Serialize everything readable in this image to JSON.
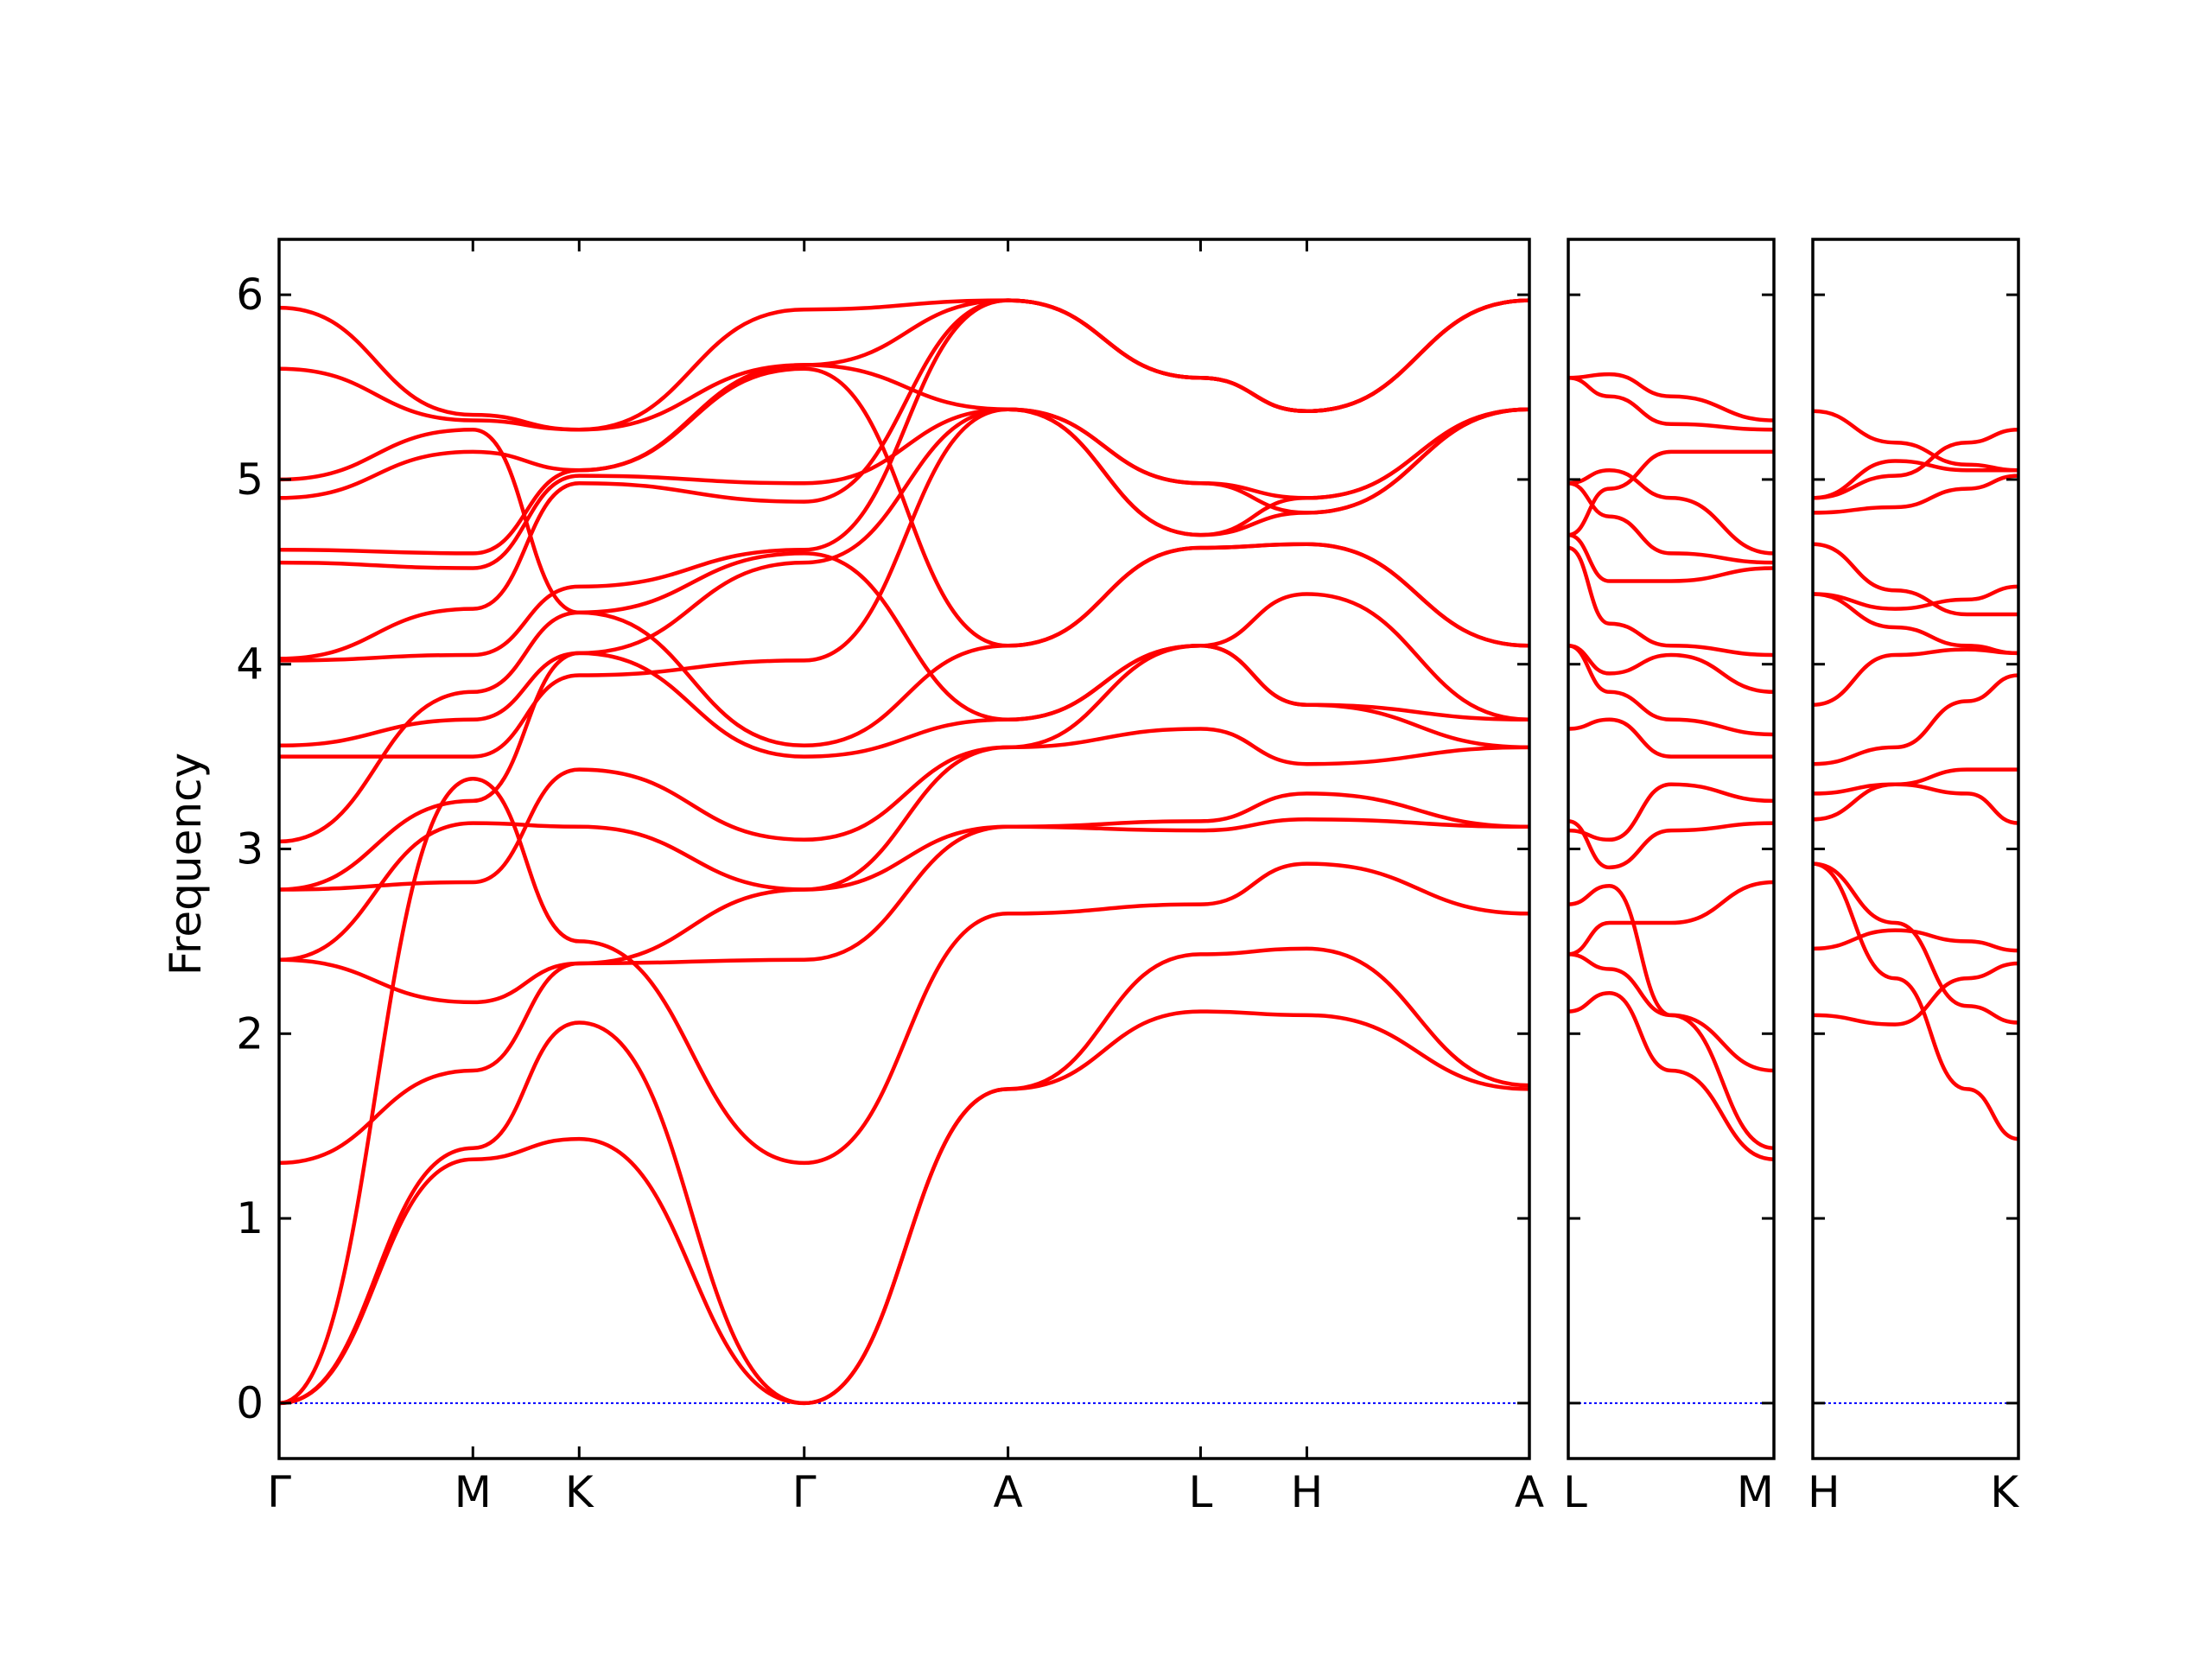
{
  "chart_data": {
    "type": "line",
    "ylabel": "Frequency",
    "ylim": [
      -0.3,
      6.3
    ],
    "yticks": [
      0,
      1,
      2,
      3,
      4,
      5,
      6
    ],
    "colors": {
      "bands": "#ff0000",
      "zero_line": "#0000ff"
    },
    "panels": [
      {
        "xlabels": [
          "Γ",
          "M",
          "K",
          "Γ",
          "A",
          "L",
          "H",
          "A"
        ],
        "xpos": [
          0,
          0.155,
          0.24,
          0.42,
          0.583,
          0.737,
          0.822,
          1.0
        ],
        "bands": [
          {
            "x": [
              0,
              0.155,
              0.24,
              0.42,
              0.583,
              0.737,
              0.822,
              1.0
            ],
            "y": [
              0,
              1.32,
              1.43,
              0,
              1.7,
              2.12,
              2.1,
              1.7
            ]
          },
          {
            "x": [
              0,
              0.155,
              0.24,
              0.42,
              0.583,
              0.737,
              0.822,
              1.0
            ],
            "y": [
              0,
              1.38,
              2.06,
              0,
              1.7,
              2.43,
              2.46,
              1.72
            ]
          },
          {
            "x": [
              0,
              0.155,
              0.24,
              0.42,
              0.583,
              0.737,
              0.822,
              1.0
            ],
            "y": [
              0,
              3.38,
              2.5,
              1.3,
              2.65,
              2.7,
              2.92,
              2.65
            ]
          },
          {
            "x": [
              0,
              0.155,
              0.24,
              0.42,
              0.583,
              0.737,
              0.822,
              1.0
            ],
            "y": [
              1.3,
              1.8,
              2.38,
              2.4,
              3.12,
              3.15,
              3.3,
              3.12
            ]
          },
          {
            "x": [
              0,
              0.155,
              0.24,
              0.42,
              0.583,
              0.737,
              0.822,
              1.0
            ],
            "y": [
              2.4,
              2.17,
              2.38,
              2.78,
              3.12,
              3.1,
              3.16,
              3.12
            ]
          },
          {
            "x": [
              0,
              0.155,
              0.24,
              0.42,
              0.583,
              0.737,
              0.822,
              1.0
            ],
            "y": [
              2.4,
              3.14,
              3.12,
              2.78,
              3.55,
              3.65,
              3.46,
              3.55
            ]
          },
          {
            "x": [
              0,
              0.155,
              0.24,
              0.42,
              0.583,
              0.737,
              0.822,
              1.0
            ],
            "y": [
              2.78,
              2.82,
              3.43,
              3.05,
              3.55,
              4.1,
              3.78,
              3.55
            ]
          },
          {
            "x": [
              0,
              0.155,
              0.24,
              0.42,
              0.583,
              0.737,
              0.822,
              1.0
            ],
            "y": [
              2.78,
              3.26,
              4.06,
              3.5,
              3.7,
              4.1,
              4.38,
              3.7
            ]
          },
          {
            "x": [
              0,
              0.155,
              0.24,
              0.42,
              0.583,
              0.737,
              0.822,
              1.0
            ],
            "y": [
              3.04,
              3.85,
              4.28,
              3.56,
              4.1,
              4.63,
              4.65,
              4.1
            ]
          },
          {
            "x": [
              0,
              0.155,
              0.24,
              0.42,
              0.583,
              0.737,
              0.822,
              1.0
            ],
            "y": [
              3.5,
              3.5,
              3.94,
              4.02,
              5.38,
              4.7,
              4.9,
              5.38
            ]
          },
          {
            "x": [
              0,
              0.155,
              0.24,
              0.42,
              0.583,
              0.737,
              0.822,
              1.0
            ],
            "y": [
              3.56,
              3.7,
              4.06,
              4.55,
              5.38,
              4.98,
              4.82,
              5.38
            ]
          },
          {
            "x": [
              0,
              0.155,
              0.24,
              0.42,
              0.583,
              0.737,
              0.822,
              1.0
            ],
            "y": [
              4.02,
              4.05,
              4.42,
              4.62,
              5.97,
              5.55,
              5.37,
              5.97
            ]
          },
          {
            "x": [
              0,
              0.155,
              0.24,
              0.42,
              0.583,
              0.737,
              0.822,
              1.0
            ],
            "y": [
              4.03,
              4.3,
              4.98,
              4.88,
              5.97,
              5.55,
              5.37,
              5.97
            ]
          },
          {
            "x": [
              0,
              0.155,
              0.24,
              0.42,
              0.583,
              0.737,
              0.822,
              1.0
            ],
            "y": [
              4.55,
              4.52,
              5.02,
              4.98,
              5.38,
              4.98,
              4.9,
              5.38
            ]
          },
          {
            "x": [
              0,
              0.155,
              0.24,
              0.42,
              0.583,
              0.737,
              0.822,
              1.0
            ],
            "y": [
              4.62,
              4.6,
              5.05,
              5.62,
              5.38,
              4.7,
              4.82,
              5.38
            ]
          },
          {
            "x": [
              0,
              0.155,
              0.24,
              0.42,
              0.583,
              0.737,
              0.822,
              1.0
            ],
            "y": [
              4.9,
              5.15,
              5.05,
              5.6,
              4.1,
              4.63,
              4.65,
              4.1
            ]
          },
          {
            "x": [
              0,
              0.155,
              0.24,
              0.42,
              0.583,
              0.737,
              0.822,
              1.0
            ],
            "y": [
              5.0,
              5.27,
              4.28,
              4.6,
              3.7,
              4.1,
              3.78,
              3.7
            ]
          },
          {
            "x": [
              0,
              0.155,
              0.24,
              0.42,
              0.583,
              0.737,
              0.822,
              1.0
            ],
            "y": [
              5.6,
              5.32,
              5.27,
              5.62,
              5.97,
              5.55,
              5.37,
              5.97
            ]
          },
          {
            "x": [
              0,
              0.155,
              0.24,
              0.42,
              0.583,
              0.737,
              0.822,
              1.0
            ],
            "y": [
              5.93,
              5.35,
              5.27,
              5.92,
              5.97,
              5.55,
              5.37,
              5.97
            ]
          }
        ]
      },
      {
        "xlabels": [
          "L",
          "M"
        ],
        "xpos": [
          0,
          1.0
        ],
        "bands": [
          {
            "x": [
              0,
              0.2,
              0.5,
              1.0
            ],
            "y": [
              2.12,
              2.22,
              1.8,
              1.32
            ]
          },
          {
            "x": [
              0,
              0.2,
              0.5,
              1.0
            ],
            "y": [
              2.43,
              2.35,
              2.1,
              1.38
            ]
          },
          {
            "x": [
              0,
              0.2,
              0.5,
              1.0
            ],
            "y": [
              2.7,
              2.8,
              2.1,
              1.8
            ]
          },
          {
            "x": [
              0,
              0.2,
              0.5,
              1.0
            ],
            "y": [
              2.43,
              2.6,
              2.6,
              2.82
            ]
          },
          {
            "x": [
              0,
              0.2,
              0.5,
              1.0
            ],
            "y": [
              3.15,
              2.9,
              3.1,
              3.14
            ]
          },
          {
            "x": [
              0,
              0.2,
              0.5,
              1.0
            ],
            "y": [
              3.1,
              3.05,
              3.35,
              3.26
            ]
          },
          {
            "x": [
              0,
              0.2,
              0.5,
              1.0
            ],
            "y": [
              3.65,
              3.7,
              3.5,
              3.5
            ]
          },
          {
            "x": [
              0,
              0.2,
              0.5,
              1.0
            ],
            "y": [
              4.1,
              3.85,
              3.7,
              3.62
            ]
          },
          {
            "x": [
              0,
              0.2,
              0.5,
              1.0
            ],
            "y": [
              4.1,
              3.95,
              4.05,
              3.85
            ]
          },
          {
            "x": [
              0,
              0.2,
              0.5,
              1.0
            ],
            "y": [
              4.63,
              4.22,
              4.1,
              4.05
            ]
          },
          {
            "x": [
              0,
              0.2,
              0.5,
              1.0
            ],
            "y": [
              4.7,
              4.45,
              4.45,
              4.52
            ]
          },
          {
            "x": [
              0,
              0.2,
              0.5,
              1.0
            ],
            "y": [
              4.98,
              4.8,
              4.6,
              4.55
            ]
          },
          {
            "x": [
              0,
              0.2,
              0.5,
              1.0
            ],
            "y": [
              4.98,
              5.05,
              4.9,
              4.6
            ]
          },
          {
            "x": [
              0,
              0.2,
              0.5,
              1.0
            ],
            "y": [
              4.7,
              4.95,
              5.15,
              5.15
            ]
          },
          {
            "x": [
              0,
              0.2,
              0.5,
              1.0
            ],
            "y": [
              5.55,
              5.45,
              5.3,
              5.27
            ]
          },
          {
            "x": [
              0,
              0.2,
              0.5,
              1.0
            ],
            "y": [
              5.55,
              5.57,
              5.45,
              5.32
            ]
          }
        ]
      },
      {
        "xlabels": [
          "H",
          "K"
        ],
        "xpos": [
          0,
          1.0
        ],
        "bands": [
          {
            "x": [
              0,
              0.4,
              0.75,
              1.0
            ],
            "y": [
              2.1,
              2.05,
              2.3,
              2.38
            ]
          },
          {
            "x": [
              0,
              0.4,
              0.75,
              1.0
            ],
            "y": [
              2.46,
              2.56,
              2.5,
              2.45
            ]
          },
          {
            "x": [
              0,
              0.4,
              0.75,
              1.0
            ],
            "y": [
              2.92,
              2.3,
              1.7,
              1.43
            ]
          },
          {
            "x": [
              0,
              0.4,
              0.75,
              1.0
            ],
            "y": [
              2.92,
              2.6,
              2.15,
              2.06
            ]
          },
          {
            "x": [
              0,
              0.4,
              0.75,
              1.0
            ],
            "y": [
              3.16,
              3.35,
              3.3,
              3.14
            ]
          },
          {
            "x": [
              0,
              0.4,
              0.75,
              1.0
            ],
            "y": [
              3.3,
              3.35,
              3.43,
              3.43
            ]
          },
          {
            "x": [
              0,
              0.4,
              0.75,
              1.0
            ],
            "y": [
              3.46,
              3.55,
              3.8,
              3.94
            ]
          },
          {
            "x": [
              0,
              0.4,
              0.75,
              1.0
            ],
            "y": [
              3.78,
              4.05,
              4.08,
              4.06
            ]
          },
          {
            "x": [
              0,
              0.4,
              0.75,
              1.0
            ],
            "y": [
              4.38,
              4.2,
              4.1,
              4.06
            ]
          },
          {
            "x": [
              0,
              0.4,
              0.75,
              1.0
            ],
            "y": [
              4.38,
              4.3,
              4.35,
              4.42
            ]
          },
          {
            "x": [
              0,
              0.4,
              0.75,
              1.0
            ],
            "y": [
              4.65,
              4.4,
              4.27,
              4.27
            ]
          },
          {
            "x": [
              0,
              0.4,
              0.75,
              1.0
            ],
            "y": [
              4.82,
              4.85,
              4.95,
              5.02
            ]
          },
          {
            "x": [
              0,
              0.4,
              0.75,
              1.0
            ],
            "y": [
              4.9,
              5.1,
              5.05,
              5.05
            ]
          },
          {
            "x": [
              0,
              0.4,
              0.75,
              1.0
            ],
            "y": [
              4.9,
              5.02,
              5.2,
              5.27
            ]
          },
          {
            "x": [
              0,
              0.4,
              0.75,
              1.0
            ],
            "y": [
              5.37,
              5.2,
              5.08,
              5.05
            ]
          }
        ]
      }
    ]
  }
}
